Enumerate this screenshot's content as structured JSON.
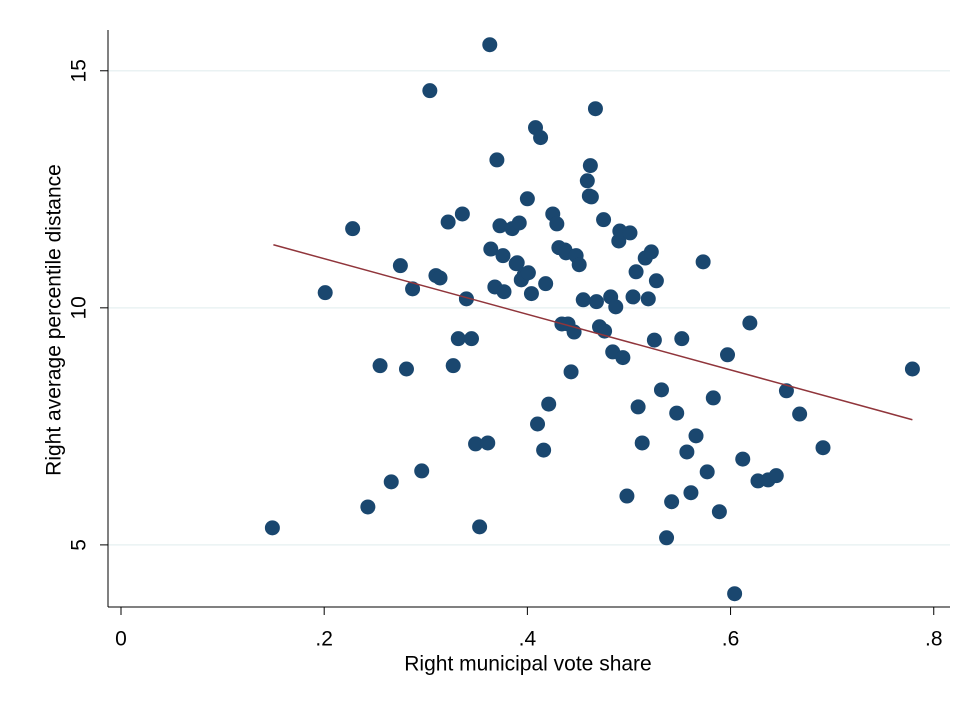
{
  "chart_data": {
    "type": "scatter",
    "x_label": "Right municipal vote share",
    "y_label": "Right average percentile distance",
    "xlim": [
      -0.0128,
      0.816
    ],
    "ylim": [
      3.69,
      15.86
    ],
    "xticks": [
      0,
      {
        "value": 0.2,
        "label": ".2"
      },
      {
        "value": 0.4,
        "label": ".4"
      },
      {
        "value": 0.6,
        "label": ".6"
      },
      {
        "value": 0.8,
        "label": ".8"
      }
    ],
    "yticks": [
      5,
      10,
      15
    ],
    "grid": true,
    "color": "#1a476f",
    "x": [
      0.149,
      0.201,
      0.228,
      0.243,
      0.255,
      0.266,
      0.275,
      0.281,
      0.287,
      0.296,
      0.304,
      0.31,
      0.314,
      0.322,
      0.327,
      0.332,
      0.336,
      0.34,
      0.345,
      0.349,
      0.353,
      0.361,
      0.364,
      0.368,
      0.363,
      0.37,
      0.373,
      0.376,
      0.377,
      0.385,
      0.389,
      0.39,
      0.392,
      0.394,
      0.397,
      0.4,
      0.401,
      0.404,
      0.408,
      0.41,
      0.413,
      0.416,
      0.418,
      0.421,
      0.425,
      0.429,
      0.431,
      0.434,
      0.437,
      0.438,
      0.44,
      0.443,
      0.446,
      0.448,
      0.451,
      0.455,
      0.459,
      0.461,
      0.462,
      0.463,
      0.467,
      0.468,
      0.471,
      0.475,
      0.476,
      0.482,
      0.484,
      0.487,
      0.49,
      0.491,
      0.494,
      0.498,
      0.501,
      0.504,
      0.507,
      0.509,
      0.513,
      0.516,
      0.519,
      0.522,
      0.525,
      0.527,
      0.532,
      0.537,
      0.542,
      0.547,
      0.552,
      0.557,
      0.561,
      0.566,
      0.573,
      0.577,
      0.583,
      0.589,
      0.597,
      0.604,
      0.612,
      0.619,
      0.627,
      0.637,
      0.645,
      0.655,
      0.668,
      0.691,
      0.779
    ],
    "y": [
      5.36,
      10.32,
      11.67,
      5.8,
      8.78,
      6.33,
      10.89,
      8.71,
      10.4,
      6.56,
      14.58,
      10.68,
      10.63,
      11.81,
      8.78,
      9.35,
      11.98,
      10.19,
      9.35,
      7.13,
      5.38,
      7.15,
      11.24,
      10.44,
      15.55,
      13.12,
      11.73,
      11.1,
      10.34,
      11.67,
      10.93,
      10.95,
      11.79,
      10.59,
      10.7,
      12.3,
      10.74,
      10.3,
      13.8,
      7.55,
      13.59,
      7.0,
      10.51,
      7.97,
      11.98,
      11.77,
      11.27,
      9.66,
      11.22,
      11.16,
      9.66,
      8.65,
      9.49,
      11.1,
      10.91,
      10.17,
      12.68,
      12.36,
      13.0,
      12.34,
      14.2,
      10.13,
      9.6,
      11.86,
      9.51,
      10.23,
      9.07,
      10.02,
      11.41,
      11.62,
      8.95,
      6.03,
      11.58,
      10.23,
      10.76,
      7.91,
      7.15,
      11.05,
      10.19,
      11.18,
      9.32,
      10.57,
      8.27,
      5.15,
      5.91,
      7.78,
      9.35,
      6.96,
      6.1,
      7.3,
      10.97,
      6.54,
      8.1,
      5.7,
      9.01,
      3.97,
      6.81,
      9.68,
      6.35,
      6.37,
      6.46,
      8.25,
      7.76,
      7.05,
      8.71
    ],
    "fit_line": {
      "color": "#90353b",
      "x": [
        0.15,
        0.779
      ],
      "y": [
        11.33,
        7.64
      ]
    }
  }
}
